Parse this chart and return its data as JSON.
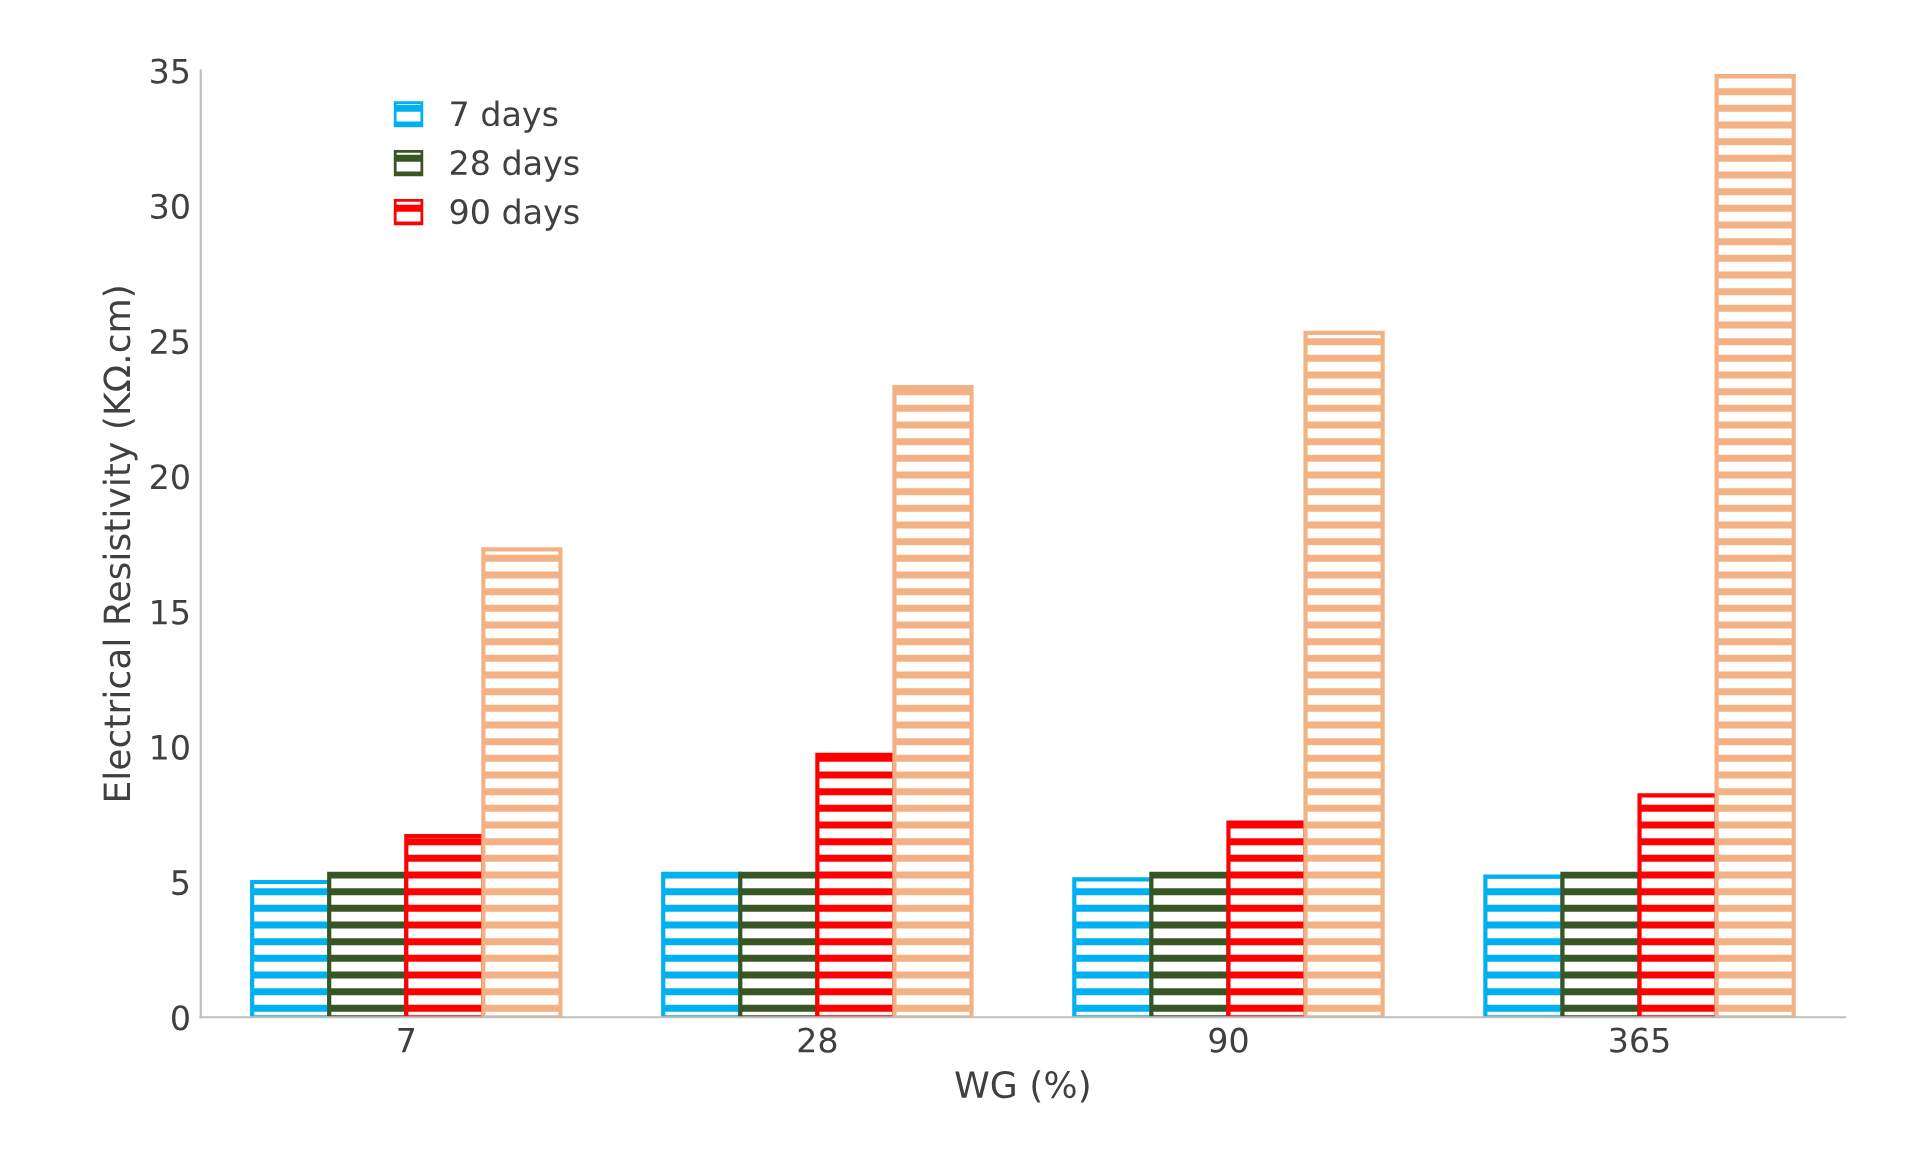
{
  "chart_data": {
    "type": "bar",
    "xlabel": "WG (%)",
    "ylabel": "Electrical Resistivity (KΩ.cm)",
    "categories": [
      "7",
      "28",
      "90",
      "365"
    ],
    "series": [
      {
        "name": "7 days",
        "color": "#00b0f0",
        "values": [
          5.0,
          5.3,
          5.1,
          5.2
        ]
      },
      {
        "name": "28 days",
        "color": "#375623",
        "values": [
          5.3,
          5.3,
          5.3,
          5.3
        ]
      },
      {
        "name": "90 days",
        "color": "#ff0000",
        "values": [
          6.7,
          9.7,
          7.2,
          8.2
        ]
      },
      {
        "color": "#f4b183",
        "values": [
          17.3,
          23.3,
          25.3,
          34.8
        ]
      }
    ],
    "ylim": [
      0,
      35
    ],
    "yticks": [
      0,
      5,
      10,
      15,
      20,
      25,
      30,
      35
    ],
    "grid": false,
    "legend": "top left"
  }
}
